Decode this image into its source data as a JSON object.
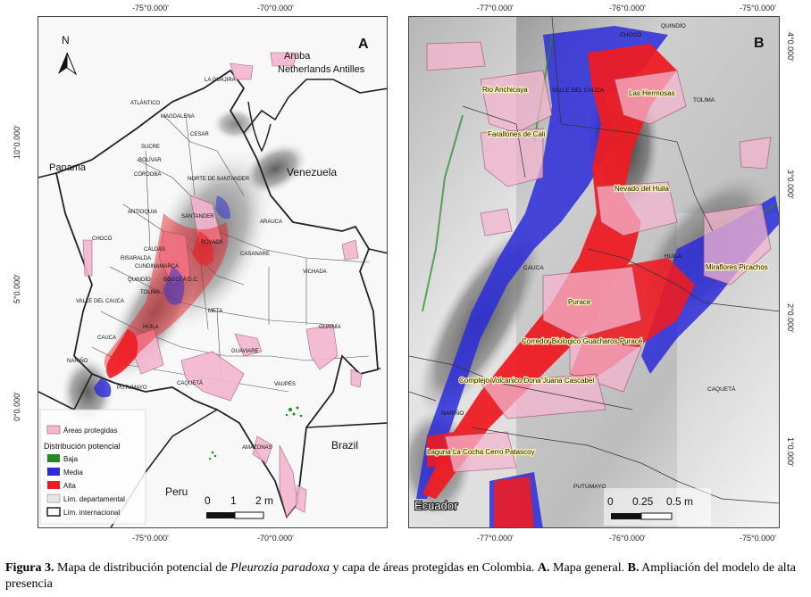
{
  "panel_a": {
    "letter": "A",
    "north": "N",
    "top_ticks": [
      "-75°0.000'",
      "-70°0.000'"
    ],
    "bottom_ticks": [
      "-75°0.000'",
      "-70°0.000'"
    ],
    "left_ticks": [
      "10°0.000'",
      "5°0.000'",
      "0°0.000'"
    ],
    "countries": [
      "Aruba",
      "Netherlands Antilles",
      "Panama",
      "Venezuela",
      "Brazil",
      "Peru"
    ],
    "departments": [
      "LA GUAJIRA",
      "ATLÁNTICO",
      "MAGDALENA",
      "CESAR",
      "SUCRE",
      "BOLÍVAR",
      "CÓRDOBA",
      "NORTE DE SANTANDER",
      "ANTIOQUIA",
      "SANTANDER",
      "ARAUCA",
      "CHOCÓ",
      "BOYACÁ",
      "CALDAS",
      "RISARALDA",
      "CASANARE",
      "CUNDINAMARCA",
      "VICHADA",
      "QUINDÍO",
      "BOGOTÁ D.C.",
      "TOLIMA",
      "VALLE DEL CAUCA",
      "META",
      "HUILA",
      "GUAINÍA",
      "CAUCA",
      "GUAVIARE",
      "NARIÑO",
      "CAQUETÁ",
      "VAUPÉS",
      "PUTUMAYO",
      "AMAZONAS"
    ],
    "legend": {
      "protected": "Áreas protegidas",
      "title": "Distribución potencial",
      "low": "Baja",
      "medium": "Media",
      "high": "Alta",
      "dept_limit": "Lím. departamental",
      "intl_limit": "Lím. internacional"
    },
    "scale": [
      "0",
      "1",
      "2 m"
    ]
  },
  "panel_b": {
    "letter": "B",
    "top_ticks": [
      "-77°0.000'",
      "-76°0.000'",
      "-75°0.000'"
    ],
    "bottom_ticks": [
      "-77°0.000'",
      "-76°0.000'",
      "-75°0.000'"
    ],
    "right_ticks": [
      "4°0.000'",
      "3°0.000'",
      "2°0.000'",
      "1°0.000'"
    ],
    "departments": [
      "QUINDÍO",
      "CHOCÓ",
      "VALLE DEL CAUCA",
      "TOLIMA",
      "CAUCA",
      "HUILA",
      "CAQUETÁ",
      "NARIÑO",
      "PUTUMAYO"
    ],
    "areas": [
      "Rio Anchicaya",
      "Las Hermosas",
      "Farallones de Cali",
      "Nevado del Huila",
      "Miraflores Picachos",
      "Purace",
      "Corredor Biologico Guacharos Puracé",
      "Complejo Volcanico Dona Juana Cascabel",
      "Laguna La Cocha Cerro Patascoy"
    ],
    "country": "Ecuador",
    "scale": [
      "0",
      "0.25",
      "0.5 m"
    ]
  },
  "caption": {
    "label": "Figura 3.",
    "text1": " Mapa de distribución potencial de ",
    "species": "Pleurozia paradoxa",
    "text2": " y capa de áreas protegidas en Colombia. ",
    "a_label": "A.",
    "a_text": " Mapa general. ",
    "b_label": "B.",
    "b_text": " Ampliación del modelo de alta presencia"
  },
  "colors": {
    "protected": "#f4b6cf",
    "low": "#1f8a1f",
    "medium": "#2b2bd9",
    "high": "#ee1c24"
  }
}
